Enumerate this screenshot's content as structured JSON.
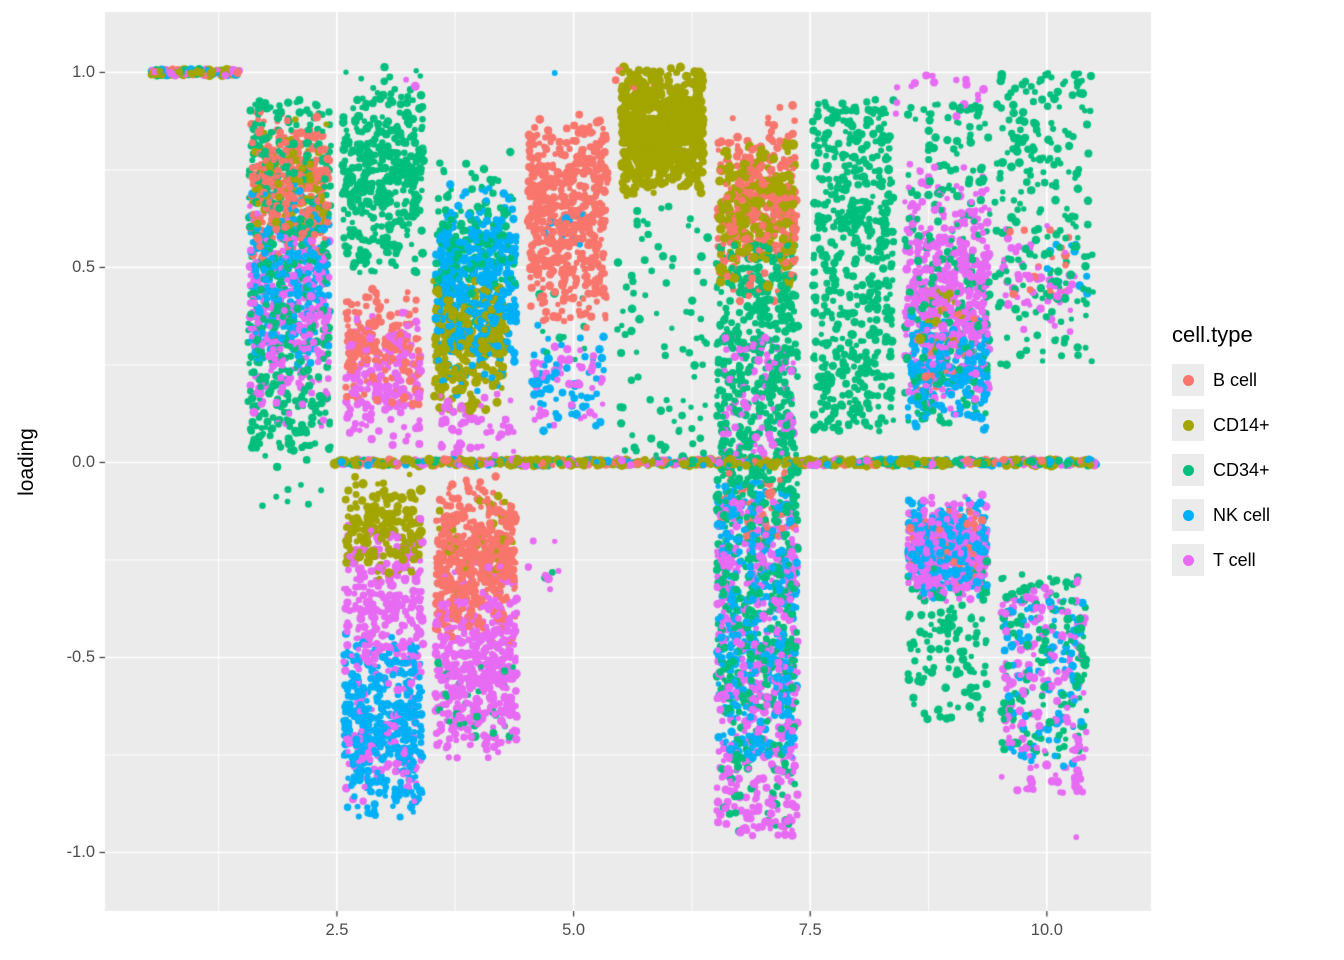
{
  "figure": {
    "background": "#FFFFFF",
    "panel_background": "#EBEBEB",
    "grid_color": "#FFFFFF",
    "tick_mark_color": "#333333",
    "tick_label_color": "#4D4D4D",
    "axis_title_color": "#000000"
  },
  "axes": {
    "y_title": "loading",
    "x_title": ""
  },
  "legend": {
    "title": "cell.type",
    "items": [
      {
        "label": "B cell",
        "color": "#F8766D"
      },
      {
        "label": "CD14+",
        "color": "#A3A500"
      },
      {
        "label": "CD34+",
        "color": "#00BF7D"
      },
      {
        "label": "NK cell",
        "color": "#00B0F6"
      },
      {
        "label": "T cell",
        "color": "#E76BF3"
      }
    ]
  },
  "chart_data": {
    "type": "scatter",
    "title": "",
    "xlabel": "",
    "ylabel": "loading",
    "x_domain": [
      0.05,
      11.1
    ],
    "y_domain": [
      -1.15,
      1.155
    ],
    "x_ticks": [
      {
        "v": 2.5,
        "label": "2.5"
      },
      {
        "v": 5.0,
        "label": "5.0"
      },
      {
        "v": 7.5,
        "label": "7.5"
      },
      {
        "v": 10.0,
        "label": "10.0"
      }
    ],
    "y_ticks": [
      {
        "v": -1.0,
        "label": "-1.0"
      },
      {
        "v": -0.5,
        "label": "-0.5"
      },
      {
        "v": 0.0,
        "label": "0.0"
      },
      {
        "v": 0.5,
        "label": "0.5"
      },
      {
        "v": 1.0,
        "label": "1.0"
      }
    ],
    "grid": true,
    "legend_position": "right",
    "point_radius_px": [
      2.6,
      4.5
    ],
    "note": "Jittered loadings per component (x = 1..10) by cell type; clusters give x center, half-width xw, y range, count n, distribution d (t=triangular, u=uniform, l=horizontal line).",
    "clusters": [
      {
        "cell": "CD14+",
        "x": 1.0,
        "xw": 0.47,
        "y": [
          1.0,
          1.0
        ],
        "n": 70,
        "d": "l",
        "r": [
          3.2,
          5.2
        ]
      },
      {
        "cell": "B cell",
        "x": 1.0,
        "xw": 0.47,
        "y": [
          1.0,
          1.0
        ],
        "n": 40,
        "d": "l"
      },
      {
        "cell": "NK cell",
        "x": 1.0,
        "xw": 0.47,
        "y": [
          1.0,
          1.0
        ],
        "n": 35,
        "d": "l"
      },
      {
        "cell": "T cell",
        "x": 1.0,
        "xw": 0.47,
        "y": [
          1.0,
          1.0
        ],
        "n": 45,
        "d": "l"
      },
      {
        "cell": "CD34+",
        "x": 1.0,
        "xw": 0.47,
        "y": [
          1.0,
          1.0
        ],
        "n": 30,
        "d": "l"
      },
      {
        "cell": "CD34+",
        "x": 2.0,
        "xw": 0.44,
        "y": [
          0.03,
          0.93
        ],
        "n": 520,
        "d": "u"
      },
      {
        "cell": "B cell",
        "x": 2.0,
        "xw": 0.42,
        "y": [
          0.5,
          0.93
        ],
        "n": 300,
        "d": "t"
      },
      {
        "cell": "CD14+",
        "x": 2.0,
        "xw": 0.4,
        "y": [
          0.55,
          0.9
        ],
        "n": 90,
        "d": "t"
      },
      {
        "cell": "NK cell",
        "x": 2.0,
        "xw": 0.42,
        "y": [
          0.22,
          0.76
        ],
        "n": 240,
        "d": "t"
      },
      {
        "cell": "T cell",
        "x": 2.0,
        "xw": 0.42,
        "y": [
          0.08,
          0.68
        ],
        "n": 320,
        "d": "t"
      },
      {
        "cell": "CD34+",
        "x": 2.0,
        "xw": 0.35,
        "y": [
          -0.12,
          0.03
        ],
        "n": 10,
        "d": "u"
      },
      {
        "cell": "CD34+",
        "x": 2.99,
        "xw": 0.43,
        "y": [
          0.45,
          1.02
        ],
        "n": 400,
        "d": "t"
      },
      {
        "cell": "B cell",
        "x": 2.99,
        "xw": 0.4,
        "y": [
          0.13,
          0.46
        ],
        "n": 170,
        "d": "t"
      },
      {
        "cell": "T cell",
        "x": 2.99,
        "xw": 0.4,
        "y": [
          0.02,
          0.42
        ],
        "n": 170,
        "d": "t"
      },
      {
        "cell": "CD14+",
        "x": 2.99,
        "xw": 0.4,
        "y": [
          -0.3,
          -0.03
        ],
        "n": 170,
        "d": "t",
        "r": [
          2.6,
          5.0
        ]
      },
      {
        "cell": "T cell",
        "x": 2.99,
        "xw": 0.42,
        "y": [
          -0.63,
          -0.13
        ],
        "n": 280,
        "d": "t"
      },
      {
        "cell": "NK cell",
        "x": 2.99,
        "xw": 0.42,
        "y": [
          -0.93,
          -0.42
        ],
        "n": 400,
        "d": "t"
      },
      {
        "cell": "T cell",
        "x": 2.99,
        "xw": 0.4,
        "y": [
          -0.9,
          -0.58
        ],
        "n": 70,
        "d": "t"
      },
      {
        "cell": "T cell",
        "x": 3.28,
        "xw": 0.05,
        "y": [
          0.95,
          0.99
        ],
        "n": 2,
        "d": "u"
      },
      {
        "cell": "CD34+",
        "x": 3.97,
        "xw": 0.42,
        "y": [
          0.33,
          0.8
        ],
        "n": 150,
        "d": "t"
      },
      {
        "cell": "NK cell",
        "x": 3.97,
        "xw": 0.43,
        "y": [
          0.17,
          0.73
        ],
        "n": 450,
        "d": "t"
      },
      {
        "cell": "CD14+",
        "x": 3.9,
        "xw": 0.38,
        "y": [
          0.12,
          0.5
        ],
        "n": 280,
        "d": "t",
        "r": [
          2.6,
          5.0
        ]
      },
      {
        "cell": "T cell",
        "x": 3.97,
        "xw": 0.4,
        "y": [
          0.0,
          0.2
        ],
        "n": 60,
        "d": "t"
      },
      {
        "cell": "B cell",
        "x": 3.97,
        "xw": 0.43,
        "y": [
          -0.48,
          -0.02
        ],
        "n": 450,
        "d": "t"
      },
      {
        "cell": "CD14+",
        "x": 3.97,
        "xw": 0.4,
        "y": [
          -0.35,
          -0.06
        ],
        "n": 40,
        "d": "t"
      },
      {
        "cell": "T cell",
        "x": 3.97,
        "xw": 0.43,
        "y": [
          -0.78,
          -0.25
        ],
        "n": 460,
        "d": "t"
      },
      {
        "cell": "CD34+",
        "x": 3.97,
        "xw": 0.4,
        "y": [
          -0.72,
          -0.45
        ],
        "n": 30,
        "d": "u"
      },
      {
        "cell": "B cell",
        "x": 4.94,
        "xw": 0.42,
        "y": [
          0.33,
          0.92
        ],
        "n": 580,
        "d": "t"
      },
      {
        "cell": "NK cell",
        "x": 4.94,
        "xw": 0.38,
        "y": [
          0.05,
          0.36
        ],
        "n": 60,
        "d": "t"
      },
      {
        "cell": "T cell",
        "x": 4.94,
        "xw": 0.38,
        "y": [
          0.08,
          0.36
        ],
        "n": 45,
        "d": "t"
      },
      {
        "cell": "NK cell",
        "x": 4.9,
        "xw": 0.2,
        "y": [
          0.55,
          0.66
        ],
        "n": 10,
        "d": "u"
      },
      {
        "cell": "CD34+",
        "x": 4.94,
        "xw": 0.3,
        "y": [
          0.25,
          0.45
        ],
        "n": 10,
        "d": "u"
      },
      {
        "cell": "T cell",
        "x": 4.7,
        "xw": 0.25,
        "y": [
          -0.33,
          -0.2
        ],
        "n": 8,
        "d": "u"
      },
      {
        "cell": "CD34+",
        "x": 4.72,
        "xw": 0.06,
        "y": [
          -0.32,
          -0.27
        ],
        "n": 2,
        "d": "u"
      },
      {
        "cell": "NK cell",
        "x": 4.82,
        "xw": 0.05,
        "y": [
          0.99,
          1.0
        ],
        "n": 1,
        "d": "u"
      },
      {
        "cell": "B cell",
        "x": 5.45,
        "xw": 0.08,
        "y": [
          0.98,
          1.01
        ],
        "n": 2,
        "d": "u"
      },
      {
        "cell": "CD14+",
        "x": 5.94,
        "xw": 0.43,
        "y": [
          0.68,
          1.02
        ],
        "n": 650,
        "d": "t",
        "r": [
          3.0,
          5.4
        ]
      },
      {
        "cell": "CD34+",
        "x": 5.94,
        "xw": 0.48,
        "y": [
          0.0,
          0.66
        ],
        "n": 90,
        "d": "u"
      },
      {
        "cell": "B cell",
        "x": 5.7,
        "xw": 0.25,
        "y": [
          0.93,
          1.0
        ],
        "n": 4,
        "d": "u"
      },
      {
        "cell": "B cell",
        "x": 6.94,
        "xw": 0.42,
        "y": [
          0.4,
          0.92
        ],
        "n": 320,
        "d": "t"
      },
      {
        "cell": "CD14+",
        "x": 6.94,
        "xw": 0.4,
        "y": [
          0.42,
          0.86
        ],
        "n": 200,
        "d": "t",
        "r": [
          3.0,
          5.4
        ]
      },
      {
        "cell": "CD34+",
        "x": 6.94,
        "xw": 0.43,
        "y": [
          -0.05,
          0.56
        ],
        "n": 480,
        "d": "u"
      },
      {
        "cell": "T cell",
        "x": 6.94,
        "xw": 0.4,
        "y": [
          0.02,
          0.32
        ],
        "n": 80,
        "d": "u"
      },
      {
        "cell": "CD34+",
        "x": 6.94,
        "xw": 0.43,
        "y": [
          -0.62,
          -0.02
        ],
        "n": 350,
        "d": "u"
      },
      {
        "cell": "NK cell",
        "x": 6.94,
        "xw": 0.42,
        "y": [
          -0.76,
          -0.05
        ],
        "n": 360,
        "d": "u"
      },
      {
        "cell": "T cell",
        "x": 6.94,
        "xw": 0.43,
        "y": [
          -0.96,
          -0.1
        ],
        "n": 480,
        "d": "u"
      },
      {
        "cell": "CD34+",
        "x": 6.94,
        "xw": 0.4,
        "y": [
          -0.95,
          -0.6
        ],
        "n": 70,
        "d": "u"
      },
      {
        "cell": "B cell",
        "x": 6.94,
        "xw": 0.4,
        "y": [
          -0.2,
          -0.02
        ],
        "n": 40,
        "d": "u"
      },
      {
        "cell": "CD34+",
        "x": 7.95,
        "xw": 0.43,
        "y": [
          0.08,
          0.93
        ],
        "n": 560,
        "d": "u"
      },
      {
        "cell": "T cell",
        "x": 8.5,
        "xw": 0.12,
        "y": [
          0.86,
          0.98
        ],
        "n": 5,
        "d": "u"
      },
      {
        "cell": "T cell",
        "x": 8.95,
        "xw": 0.45,
        "y": [
          0.1,
          0.78
        ],
        "n": 480,
        "d": "t"
      },
      {
        "cell": "CD34+",
        "x": 8.95,
        "xw": 0.45,
        "y": [
          0.1,
          0.92
        ],
        "n": 230,
        "d": "u"
      },
      {
        "cell": "NK cell",
        "x": 8.95,
        "xw": 0.42,
        "y": [
          0.08,
          0.38
        ],
        "n": 210,
        "d": "t"
      },
      {
        "cell": "CD14+",
        "x": 8.9,
        "xw": 0.3,
        "y": [
          0.28,
          0.46
        ],
        "n": 22,
        "d": "u",
        "r": [
          2.8,
          5.2
        ]
      },
      {
        "cell": "B cell",
        "x": 8.95,
        "xw": 0.35,
        "y": [
          0.15,
          0.42
        ],
        "n": 18,
        "d": "u"
      },
      {
        "cell": "T cell",
        "x": 9.0,
        "xw": 0.35,
        "y": [
          0.88,
          1.0
        ],
        "n": 12,
        "d": "u"
      },
      {
        "cell": "NK cell",
        "x": 8.95,
        "xw": 0.42,
        "y": [
          -0.36,
          -0.08
        ],
        "n": 300,
        "d": "t"
      },
      {
        "cell": "T cell",
        "x": 8.95,
        "xw": 0.42,
        "y": [
          -0.38,
          -0.08
        ],
        "n": 300,
        "d": "t"
      },
      {
        "cell": "B cell",
        "x": 8.95,
        "xw": 0.4,
        "y": [
          -0.32,
          -0.1
        ],
        "n": 70,
        "d": "t"
      },
      {
        "cell": "CD34+",
        "x": 8.95,
        "xw": 0.42,
        "y": [
          -0.66,
          -0.25
        ],
        "n": 130,
        "d": "u"
      },
      {
        "cell": "CD34+",
        "x": 9.97,
        "xw": 0.52,
        "y": [
          0.25,
          1.0
        ],
        "n": 230,
        "d": "u"
      },
      {
        "cell": "T cell",
        "x": 9.9,
        "xw": 0.4,
        "y": [
          0.3,
          0.62
        ],
        "n": 55,
        "d": "t"
      },
      {
        "cell": "B cell",
        "x": 9.95,
        "xw": 0.35,
        "y": [
          0.42,
          0.6
        ],
        "n": 18,
        "d": "u"
      },
      {
        "cell": "NK cell",
        "x": 10.2,
        "xw": 0.25,
        "y": [
          0.38,
          0.58
        ],
        "n": 10,
        "d": "u"
      },
      {
        "cell": "CD34+",
        "x": 9.97,
        "xw": 0.45,
        "y": [
          -0.76,
          -0.28
        ],
        "n": 150,
        "d": "u"
      },
      {
        "cell": "T cell",
        "x": 9.97,
        "xw": 0.45,
        "y": [
          -0.85,
          -0.3
        ],
        "n": 170,
        "d": "u"
      },
      {
        "cell": "NK cell",
        "x": 9.97,
        "xw": 0.42,
        "y": [
          -0.78,
          -0.35
        ],
        "n": 90,
        "d": "u"
      },
      {
        "cell": "T cell",
        "x": 10.3,
        "xw": 0.05,
        "y": [
          -0.98,
          -0.95
        ],
        "n": 1,
        "d": "u"
      },
      {
        "cell": "CD14+",
        "x": 6.5,
        "xw": 4.03,
        "y": [
          0.0,
          0.0
        ],
        "n": 380,
        "d": "l",
        "r": [
          3.0,
          5.2
        ]
      },
      {
        "cell": "CD34+",
        "x": 6.5,
        "xw": 4.03,
        "y": [
          0.0,
          0.0
        ],
        "n": 160,
        "d": "l"
      },
      {
        "cell": "B cell",
        "x": 6.5,
        "xw": 4.03,
        "y": [
          0.0,
          0.0
        ],
        "n": 130,
        "d": "l"
      },
      {
        "cell": "NK cell",
        "x": 6.5,
        "xw": 4.03,
        "y": [
          0.0,
          0.0
        ],
        "n": 130,
        "d": "l"
      },
      {
        "cell": "T cell",
        "x": 6.5,
        "xw": 4.03,
        "y": [
          0.0,
          0.0
        ],
        "n": 160,
        "d": "l"
      }
    ]
  }
}
